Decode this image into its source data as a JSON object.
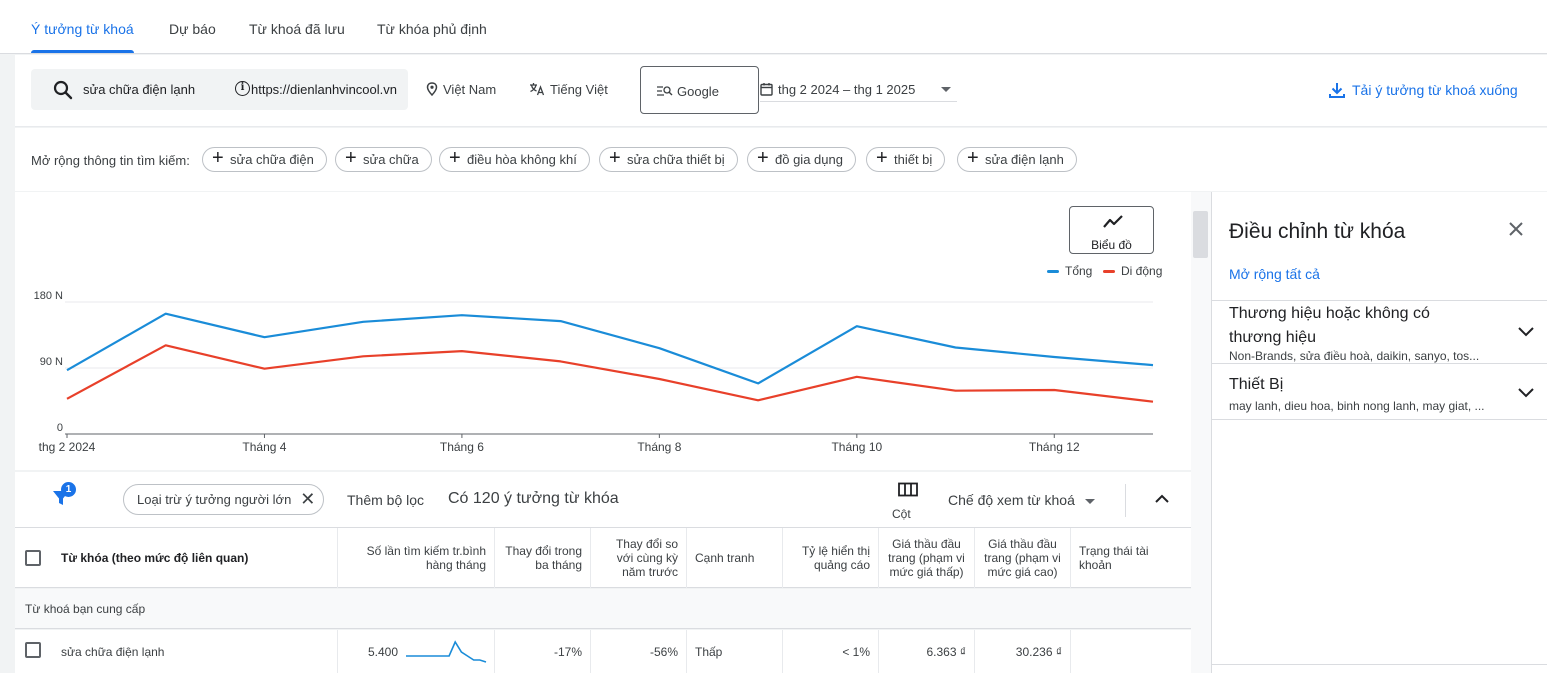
{
  "tabs": [
    "Ý tưởng từ khoá",
    "Dự báo",
    "Từ khoá đã lưu",
    "Từ khóa phủ định"
  ],
  "search": {
    "query": "sửa chữa điện lạnh",
    "url": "https://dienlanhvincool.vn",
    "location": "Việt Nam",
    "language": "Tiếng Việt",
    "engine": "Google",
    "date_range": "thg 2 2024 – thg 1 2025",
    "download_label": "Tải ý tưởng từ khoá xuống"
  },
  "expand": {
    "label": "Mở rộng thông tin tìm kiếm:",
    "chips": [
      "sửa chữa điện",
      "sửa chữa",
      "điều hòa không khí",
      "sửa chữa thiết bị",
      "đồ gia dụng",
      "thiết bị",
      "sửa điện lạnh"
    ]
  },
  "chart_button_label": "Biểu đồ",
  "legend": {
    "total": "Tổng",
    "mobile": "Di động"
  },
  "colors": {
    "accent": "#1a73e8",
    "total": "#1a8cd8",
    "mobile": "#e8402a"
  },
  "chart_data": {
    "type": "line",
    "x": [
      "thg 2 2024",
      "Tháng 3",
      "Tháng 4",
      "Tháng 5",
      "Tháng 6",
      "Tháng 7",
      "Tháng 8",
      "Tháng 9",
      "Tháng 10",
      "Tháng 11",
      "Tháng 12",
      "Tháng 1"
    ],
    "xtick_labels": [
      "thg 2 2024",
      "Tháng 4",
      "Tháng 6",
      "Tháng 8",
      "Tháng 10",
      "Tháng 12"
    ],
    "xtick_indices": [
      0,
      2,
      4,
      6,
      8,
      10
    ],
    "series": [
      {
        "name": "Tổng",
        "values": [
          87000,
          164000,
          132000,
          153000,
          162000,
          154000,
          117000,
          69000,
          147000,
          118000,
          105000,
          94000
        ]
      },
      {
        "name": "Di động",
        "values": [
          48000,
          121000,
          89000,
          106000,
          113000,
          99000,
          75000,
          46000,
          78000,
          59000,
          60000,
          44000
        ]
      }
    ],
    "ytick_labels": [
      "0",
      "90 N",
      "180 N"
    ],
    "ytick_values": [
      0,
      90000,
      180000
    ],
    "ylim": [
      0,
      180000
    ],
    "legend": "top-right"
  },
  "filters": {
    "badge": "1",
    "chip_label": "Loại trừ ý tưởng người lớn",
    "add_filter": "Thêm bộ lọc",
    "idea_count": "Có 120 ý tưởng từ khóa",
    "columns_label": "Cột",
    "view_mode": "Chế độ xem từ khoá"
  },
  "table": {
    "headers": [
      "Từ khóa (theo mức độ liên quan)",
      "Số lần tìm kiếm tr.bình hàng tháng",
      "Thay đổi trong ba tháng",
      "Thay đổi so với cùng kỳ năm trước",
      "Cạnh tranh",
      "Tỷ lệ hiển thị quảng cáo",
      "Giá thầu đầu trang (phạm vi mức giá thấp)",
      "Giá thầu đầu trang (phạm vi mức giá cao)",
      "Trạng thái tài khoản"
    ],
    "group_label": "Từ khoá bạn cung cấp",
    "rows": [
      {
        "keyword": "sửa chữa điện lạnh",
        "searches": "5.400",
        "sparkline": [
          3,
          3,
          3,
          3,
          3,
          3,
          3,
          3,
          10,
          5,
          3,
          1,
          1,
          0
        ],
        "three_month": "-17%",
        "yoy": "-56%",
        "competition": "Thấp",
        "impression_share": "< 1%",
        "bid_low": "6.363 ₫",
        "bid_high": "30.236 ₫",
        "status": ""
      }
    ]
  },
  "right_panel": {
    "title": "Điều chỉnh từ khóa",
    "expand_all": "Mở rộng tất cả",
    "sections": [
      {
        "title": "Thương hiệu hoặc không có thương hiệu",
        "subtitle": "Non-Brands, sửa điều hoà, daikin, sanyo, tos..."
      },
      {
        "title": "Thiết Bị",
        "subtitle": "may lanh, dieu hoa, binh nong lanh, may giat, ..."
      }
    ]
  }
}
